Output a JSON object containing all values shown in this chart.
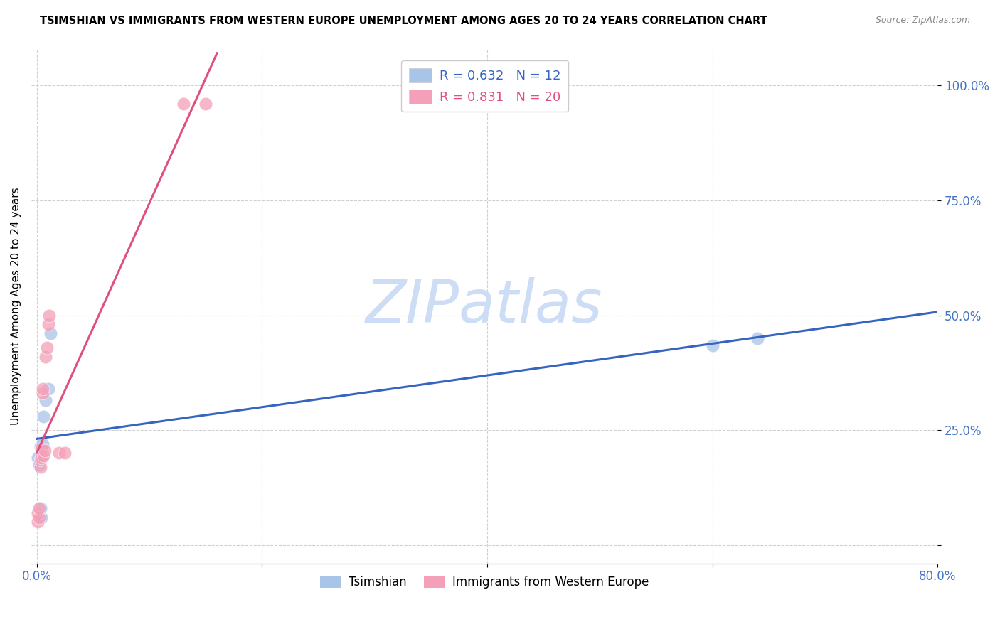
{
  "title": "TSIMSHIAN VS IMMIGRANTS FROM WESTERN EUROPE UNEMPLOYMENT AMONG AGES 20 TO 24 YEARS CORRELATION CHART",
  "source": "Source: ZipAtlas.com",
  "tick_color": "#4472c4",
  "ylabel": "Unemployment Among Ages 20 to 24 years",
  "xmin": 0.0,
  "xmax": 0.8,
  "ymin": -0.04,
  "ymax": 1.08,
  "x_ticks": [
    0.0,
    0.2,
    0.4,
    0.6,
    0.8
  ],
  "x_tick_labels": [
    "0.0%",
    "",
    "",
    "",
    "80.0%"
  ],
  "y_ticks": [
    0.0,
    0.25,
    0.5,
    0.75,
    1.0
  ],
  "y_tick_labels": [
    "",
    "25.0%",
    "50.0%",
    "75.0%",
    "100.0%"
  ],
  "tsimshian_color": "#a8c4e8",
  "immigrants_color": "#f4a0b8",
  "trendline_tsimshian_color": "#3565c0",
  "trendline_immigrants_color": "#e0507a",
  "watermark_text": "ZIPatlas",
  "watermark_color": "#ccddf5",
  "legend_label_1": "R = 0.632   N = 12",
  "legend_label_2": "R = 0.831   N = 20",
  "legend_color_1": "#3565c0",
  "legend_color_2": "#e0507a",
  "label_tsimshian": "Tsimshian",
  "label_immigrants": "Immigrants from Western Europe",
  "background_color": "#ffffff",
  "grid_color": "#d0d0d0",
  "title_fontsize": 10.5,
  "axis_label_fontsize": 11,
  "tick_fontsize": 12,
  "tsimshian_x": [
    0.001,
    0.002,
    0.003,
    0.004,
    0.005,
    0.006,
    0.008,
    0.01,
    0.012,
    0.6,
    0.64,
    0.003
  ],
  "tsimshian_y": [
    0.19,
    0.175,
    0.215,
    0.06,
    0.22,
    0.28,
    0.315,
    0.34,
    0.46,
    0.435,
    0.45,
    0.08
  ],
  "immigrants_x": [
    0.001,
    0.001,
    0.002,
    0.002,
    0.003,
    0.003,
    0.004,
    0.004,
    0.005,
    0.005,
    0.006,
    0.007,
    0.008,
    0.009,
    0.01,
    0.011,
    0.02,
    0.025,
    0.13,
    0.15
  ],
  "immigrants_y": [
    0.05,
    0.07,
    0.06,
    0.08,
    0.17,
    0.185,
    0.19,
    0.21,
    0.33,
    0.34,
    0.195,
    0.205,
    0.41,
    0.43,
    0.48,
    0.5,
    0.2,
    0.2,
    0.96,
    0.96
  ],
  "scatter_size": 180,
  "scatter_alpha": 0.75
}
